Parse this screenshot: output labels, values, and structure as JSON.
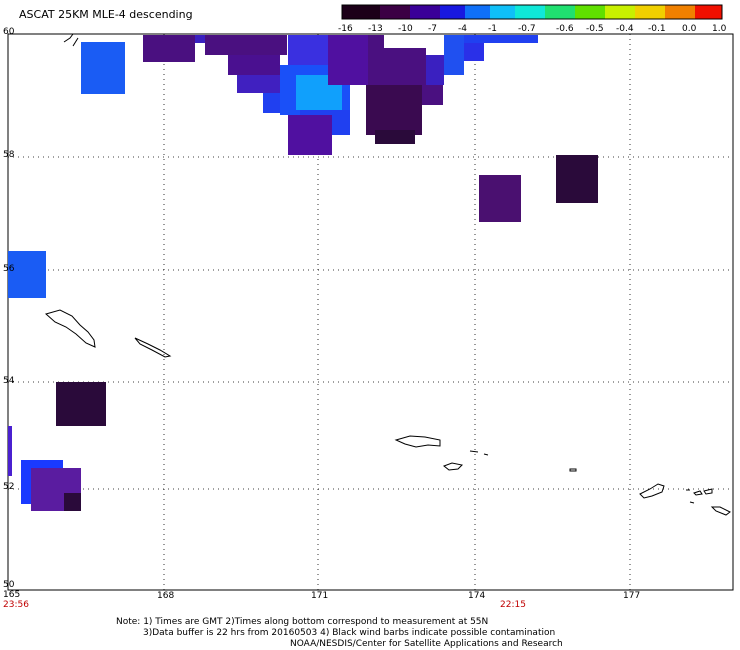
{
  "title": "ASCAT 25KM MLE-4 descending",
  "colorbar": {
    "labels": [
      "-16",
      "-13",
      "-10",
      "-7",
      "-4",
      "-1",
      "-0.7",
      "-0.6",
      "-0.5",
      "-0.4",
      "-0.1",
      "0.0",
      "1.0"
    ],
    "colors": [
      "#1c0018",
      "#3b0044",
      "#4a0090",
      "#1010d0",
      "#1060f0",
      "#10b0f8",
      "#10e8e0",
      "#20e060",
      "#70e000",
      "#f0f000",
      "#f0a000",
      "#f05000",
      "#f00000"
    ]
  },
  "axes": {
    "x_ticks": [
      "165",
      "168",
      "171",
      "174",
      "177"
    ],
    "y_ticks": [
      "60",
      "58",
      "56",
      "54",
      "52",
      "50"
    ]
  },
  "times": {
    "left": "23:56",
    "right": "22:15"
  },
  "notes": {
    "line1": "Note: 1) Times are GMT 2)Times along bottom correspond to measurement at 55N",
    "line2": "3)Data buffer is 22 hrs from 20160503 4) Black wind barbs indicate possible contamination",
    "line3": "NOAA/NESDIS/Center for Satellite Applications and Research"
  },
  "colors": {
    "deep": "#2a0a3a",
    "purple": "#4a1070",
    "violet": "#5010a0",
    "blue": "#1a3aff",
    "mid": "#1060f0",
    "cyan": "#10a8ff",
    "time_red": "#c00000"
  }
}
